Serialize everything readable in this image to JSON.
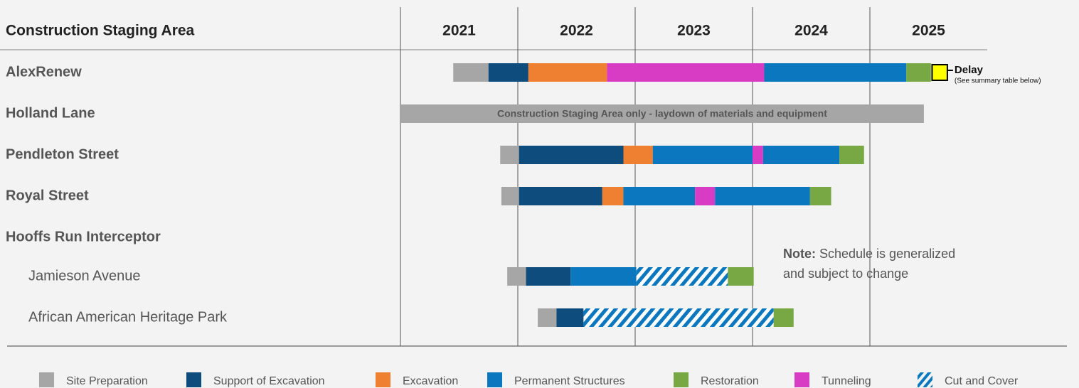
{
  "chart_data": {
    "type": "gantt",
    "title": "Construction Staging Area",
    "xlim": [
      2021,
      2026
    ],
    "xticks": [
      2021,
      2022,
      2023,
      2024,
      2025
    ],
    "column_labels": [
      "2021",
      "2022",
      "2023",
      "2024",
      "2025"
    ],
    "series": [
      {
        "name": "Site Preparation",
        "color": "#a6a6a6"
      },
      {
        "name": "Support of Excavation",
        "color": "#0e4c7d"
      },
      {
        "name": "Excavation",
        "color": "#ef7f31"
      },
      {
        "name": "Permanent Structures",
        "color": "#0a77bf"
      },
      {
        "name": "Restoration",
        "color": "#77a843"
      },
      {
        "name": "Tunneling",
        "color": "#d83cc5"
      },
      {
        "name": "Cut and Cover",
        "color": "#0a77bf",
        "hatch": true
      }
    ],
    "rows": [
      {
        "name": "AlexRenew",
        "segments": [
          {
            "phase": 0,
            "start": 2021.45,
            "end": 2021.75
          },
          {
            "phase": 1,
            "start": 2021.75,
            "end": 2022.09
          },
          {
            "phase": 2,
            "start": 2022.09,
            "end": 2022.76
          },
          {
            "phase": 5,
            "start": 2022.76,
            "end": 2024.1
          },
          {
            "phase": 3,
            "start": 2024.1,
            "end": 2025.31
          },
          {
            "phase": 4,
            "start": 2025.31,
            "end": 2025.52
          }
        ],
        "delay": {
          "start": 2025.53,
          "end": 2025.66,
          "color": "#ffff00",
          "label": "Delay",
          "note": "(See summary table below)"
        }
      },
      {
        "name": "Holland Lane",
        "segments": [
          {
            "phase": 0,
            "start": 2021.0,
            "end": 2025.46,
            "label": "Construction Staging Area only - laydown of materials and equipment"
          }
        ]
      },
      {
        "name": "Pendleton Street",
        "segments": [
          {
            "phase": 0,
            "start": 2021.85,
            "end": 2022.01
          },
          {
            "phase": 1,
            "start": 2022.01,
            "end": 2022.9
          },
          {
            "phase": 2,
            "start": 2022.9,
            "end": 2023.15
          },
          {
            "phase": 3,
            "start": 2023.15,
            "end": 2024.0
          },
          {
            "phase": 5,
            "start": 2024.0,
            "end": 2024.09
          },
          {
            "phase": 3,
            "start": 2024.09,
            "end": 2024.74
          },
          {
            "phase": 4,
            "start": 2024.74,
            "end": 2024.95
          }
        ]
      },
      {
        "name": "Royal Street",
        "segments": [
          {
            "phase": 0,
            "start": 2021.86,
            "end": 2022.01
          },
          {
            "phase": 1,
            "start": 2022.01,
            "end": 2022.72
          },
          {
            "phase": 2,
            "start": 2022.72,
            "end": 2022.9
          },
          {
            "phase": 3,
            "start": 2022.9,
            "end": 2023.51
          },
          {
            "phase": 5,
            "start": 2023.51,
            "end": 2023.68
          },
          {
            "phase": 3,
            "start": 2023.68,
            "end": 2024.49
          },
          {
            "phase": 4,
            "start": 2024.49,
            "end": 2024.67
          }
        ]
      },
      {
        "name": "Hooffs Run Interceptor",
        "segments": [],
        "children": [
          {
            "name": "Jamieson Avenue",
            "segments": [
              {
                "phase": 0,
                "start": 2021.91,
                "end": 2022.07
              },
              {
                "phase": 1,
                "start": 2022.07,
                "end": 2022.45
              },
              {
                "phase": 3,
                "start": 2022.45,
                "end": 2023.01
              },
              {
                "phase": 6,
                "start": 2023.01,
                "end": 2023.79
              },
              {
                "phase": 4,
                "start": 2023.79,
                "end": 2024.01
              }
            ]
          },
          {
            "name": "African American Heritage Park",
            "segments": [
              {
                "phase": 0,
                "start": 2022.17,
                "end": 2022.33
              },
              {
                "phase": 1,
                "start": 2022.33,
                "end": 2022.56
              },
              {
                "phase": 6,
                "start": 2022.56,
                "end": 2024.18
              },
              {
                "phase": 4,
                "start": 2024.18,
                "end": 2024.35
              }
            ]
          }
        ]
      }
    ],
    "note": {
      "label": "Note:",
      "lines": [
        "Schedule is generalized",
        "and subject to change"
      ]
    }
  }
}
